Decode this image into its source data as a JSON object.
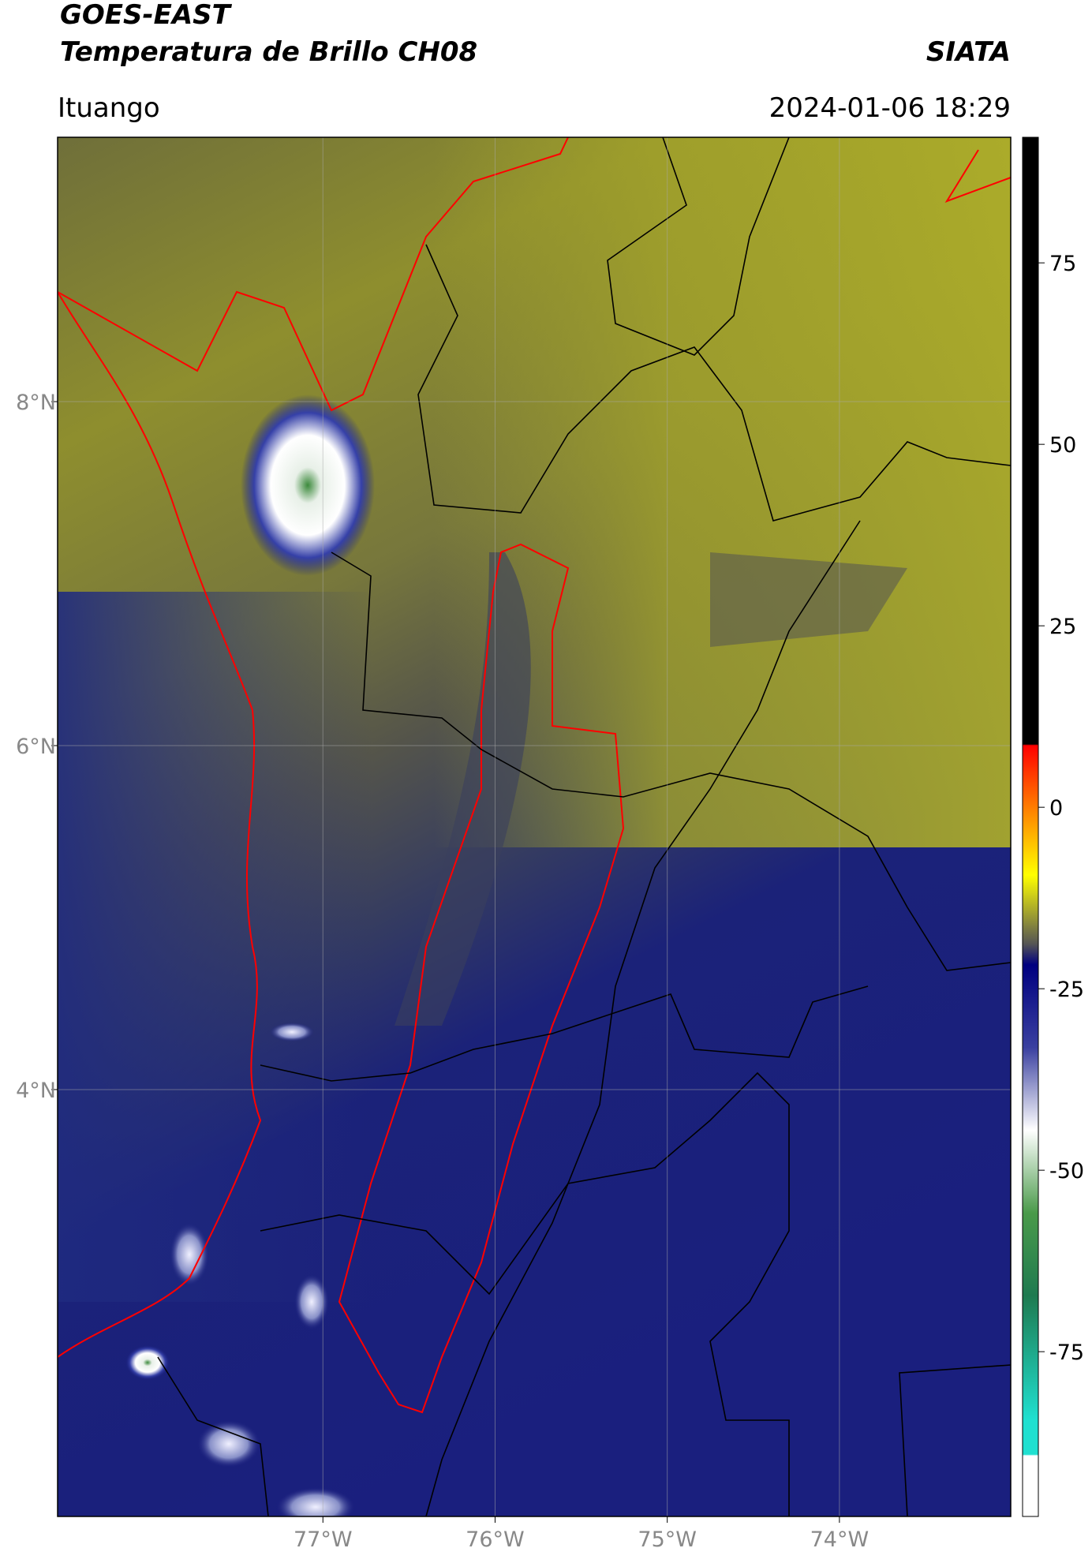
{
  "header": {
    "title": "GOES-EAST",
    "subtitle": "Temperatura de Brillo CH08",
    "source": "SIATA",
    "location": "Ituango",
    "datetime": "2024-01-06 18:29"
  },
  "map": {
    "xlim": [
      -78.541,
      -73.005
    ],
    "ylim": [
      1.518,
      9.537
    ],
    "xticks": [
      {
        "value": -77,
        "label": "77°W"
      },
      {
        "value": -76,
        "label": "76°W"
      },
      {
        "value": -75,
        "label": "75°W"
      },
      {
        "value": -74,
        "label": "74°W"
      }
    ],
    "yticks": [
      {
        "value": 8,
        "label": "8°N"
      },
      {
        "value": 6,
        "label": "6°N"
      },
      {
        "value": 4,
        "label": "4°N"
      }
    ]
  },
  "colorbar": {
    "ylim": [
      -97.7,
      92.3
    ],
    "yticks": [
      75,
      50,
      25,
      0,
      -25,
      -50,
      -75
    ]
  }
}
